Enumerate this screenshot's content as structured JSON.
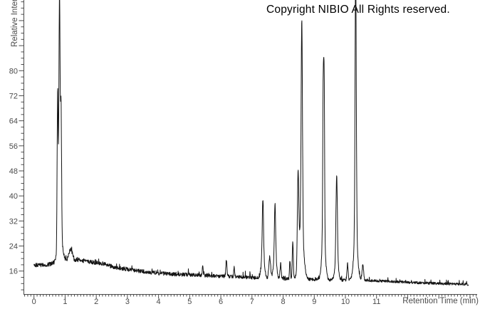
{
  "header": {
    "copyright": "Copyright NIBIO All Rights reserved."
  },
  "chart_data": {
    "type": "line",
    "title": "",
    "xlabel": "Retention Time (min)",
    "ylabel": "Relative Intensity",
    "grid": false,
    "legend": null,
    "background": "#ffffff",
    "trace_color": "#141414",
    "axis_color": "#4b4b4b",
    "label_color": "#4b4b4b",
    "x_axis": {
      "unit": "min",
      "range_shown": [
        -0.35,
        14.25
      ],
      "labeled_ticks": [
        0,
        1,
        2,
        3,
        4,
        5,
        6,
        7,
        8,
        9,
        10,
        11
      ],
      "major_step": 1,
      "minor_step": 0.1
    },
    "y_axis": {
      "range_shown": [
        8.5,
        102
      ],
      "labeled_ticks": [
        16,
        24,
        32,
        40,
        48,
        56,
        64,
        72,
        80
      ],
      "major_step": 8,
      "minor_step": 2
    },
    "trace_span": [
      0.0,
      13.95
    ],
    "samples": 1900,
    "baseline_points": [
      [
        0,
        17.8
      ],
      [
        0.3,
        18.0
      ],
      [
        0.55,
        18.2
      ],
      [
        0.7,
        18.3
      ],
      [
        0.95,
        18.8
      ],
      [
        1.05,
        19.0
      ],
      [
        1.45,
        19.6
      ],
      [
        1.8,
        18.9
      ],
      [
        2.2,
        18.4
      ],
      [
        2.6,
        17.2
      ],
      [
        3.0,
        16.5
      ],
      [
        3.5,
        15.9
      ],
      [
        4.0,
        15.3
      ],
      [
        4.5,
        15.0
      ],
      [
        5.0,
        14.8
      ],
      [
        5.5,
        14.6
      ],
      [
        6.0,
        14.4
      ],
      [
        6.5,
        14.2
      ],
      [
        7.0,
        13.9
      ],
      [
        7.5,
        13.7
      ],
      [
        8.0,
        13.5
      ],
      [
        8.5,
        13.4
      ],
      [
        9.0,
        13.3
      ],
      [
        9.5,
        13.2
      ],
      [
        10.0,
        13.1
      ],
      [
        10.5,
        13.1
      ],
      [
        11.0,
        12.9
      ],
      [
        11.5,
        12.7
      ],
      [
        12.0,
        12.4
      ],
      [
        12.5,
        12.2
      ],
      [
        13.0,
        12.0
      ],
      [
        13.5,
        11.9
      ],
      [
        13.95,
        11.8
      ]
    ],
    "peaks": [
      {
        "retention_time": 0.76,
        "intensity": 67,
        "sigma": 0.016
      },
      {
        "retention_time": 0.82,
        "intensity": 91,
        "sigma": 0.019
      },
      {
        "retention_time": 0.87,
        "intensity": 58,
        "sigma": 0.016
      },
      {
        "retention_time": 1.18,
        "intensity": 23,
        "sigma": 0.055
      },
      {
        "retention_time": 5.42,
        "intensity": 17.7,
        "sigma": 0.013
      },
      {
        "retention_time": 6.18,
        "intensity": 19.4,
        "sigma": 0.018
      },
      {
        "retention_time": 6.43,
        "intensity": 17.3,
        "sigma": 0.014
      },
      {
        "retention_time": 7.35,
        "intensity": 32,
        "sigma": 0.02
      },
      {
        "retention_time": 7.57,
        "intensity": 20.5,
        "sigma": 0.028
      },
      {
        "retention_time": 7.74,
        "intensity": 31,
        "sigma": 0.02
      },
      {
        "retention_time": 7.92,
        "intensity": 18.5,
        "sigma": 0.018
      },
      {
        "retention_time": 8.22,
        "intensity": 19.5,
        "sigma": 0.014
      },
      {
        "retention_time": 8.31,
        "intensity": 25.5,
        "sigma": 0.017
      },
      {
        "retention_time": 8.48,
        "intensity": 41,
        "sigma": 0.022
      },
      {
        "retention_time": 8.6,
        "intensity": 80.5,
        "sigma": 0.021
      },
      {
        "retention_time": 9.29,
        "intensity": 63.5,
        "sigma": 0.017
      },
      {
        "retention_time": 9.32,
        "intensity": 55,
        "sigma": 0.014
      },
      {
        "retention_time": 9.72,
        "intensity": 40,
        "sigma": 0.022
      },
      {
        "retention_time": 10.07,
        "intensity": 18.5,
        "sigma": 0.018
      },
      {
        "retention_time": 10.33,
        "intensity": 98,
        "sigma": 0.02
      },
      {
        "retention_time": 10.56,
        "intensity": 18,
        "sigma": 0.025
      }
    ],
    "broad_components": [
      {
        "retention_time": 0.83,
        "intensity": 30,
        "sigma": 0.055
      },
      {
        "retention_time": 0.85,
        "intensity": 21,
        "sigma": 0.12
      },
      {
        "retention_time": 7.35,
        "intensity": 21,
        "sigma": 0.05
      },
      {
        "retention_time": 7.74,
        "intensity": 20,
        "sigma": 0.05
      },
      {
        "retention_time": 8.58,
        "intensity": 30,
        "sigma": 0.075
      },
      {
        "retention_time": 9.3,
        "intensity": 27,
        "sigma": 0.055
      },
      {
        "retention_time": 9.72,
        "intensity": 20,
        "sigma": 0.05
      },
      {
        "retention_time": 10.33,
        "intensity": 27,
        "sigma": 0.06
      }
    ],
    "noise": {
      "seed": 20,
      "amplitude_profile": [
        [
          0,
          0.7
        ],
        [
          7.0,
          0.55
        ],
        [
          10.8,
          0.42
        ],
        [
          14,
          0.4
        ]
      ],
      "spike_chance": 0.05,
      "spike_amplitude": 1.5
    }
  }
}
